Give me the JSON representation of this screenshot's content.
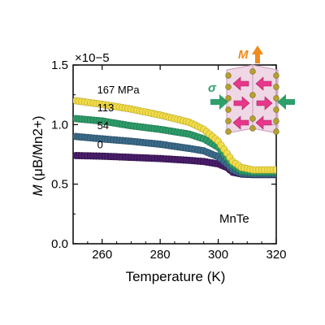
{
  "chart_data": {
    "type": "scatter",
    "xlabel": "Temperature (K)",
    "ylabel_main": "M",
    "ylabel_units": "(μB/Mn2+)",
    "scale_factor_label": "×10−5",
    "xlim": [
      250,
      320
    ],
    "ylim": [
      0.0,
      1.5
    ],
    "xticks": [
      260,
      280,
      300,
      320
    ],
    "yticks": [
      0.0,
      0.5,
      1.0,
      1.5
    ],
    "xtick_labels": [
      "260",
      "280",
      "300",
      "320"
    ],
    "ytick_labels": [
      "0.0",
      "0.5",
      "1.0",
      "1.5"
    ],
    "grid": false,
    "sample_label": "MnTe",
    "series": [
      {
        "name": "0",
        "color": "#4b1e6d",
        "edge": "#2b0f40",
        "x": [
          251,
          260,
          270,
          280,
          290,
          295,
          300,
          303,
          305,
          308,
          312,
          320
        ],
        "y": [
          0.74,
          0.735,
          0.725,
          0.715,
          0.7,
          0.69,
          0.67,
          0.64,
          0.6,
          0.585,
          0.58,
          0.58
        ]
      },
      {
        "name": "54",
        "color": "#3d6b8a",
        "edge": "#244a63",
        "x": [
          251,
          260,
          270,
          280,
          290,
          295,
          300,
          303,
          305,
          308,
          312,
          320
        ],
        "y": [
          0.9,
          0.88,
          0.86,
          0.835,
          0.8,
          0.78,
          0.73,
          0.67,
          0.62,
          0.59,
          0.585,
          0.585
        ]
      },
      {
        "name": "113",
        "color": "#2e9e6b",
        "edge": "#1c6e48",
        "x": [
          251,
          260,
          270,
          280,
          290,
          295,
          300,
          303,
          305,
          308,
          312,
          320
        ],
        "y": [
          1.05,
          1.03,
          0.99,
          0.96,
          0.92,
          0.88,
          0.81,
          0.72,
          0.66,
          0.61,
          0.6,
          0.6
        ]
      },
      {
        "name": "167 MPa",
        "color": "#f2de4a",
        "edge": "#b9a42a",
        "x": [
          251,
          260,
          270,
          280,
          290,
          295,
          300,
          303,
          305,
          308,
          312,
          320
        ],
        "y": [
          1.2,
          1.17,
          1.13,
          1.08,
          1.02,
          0.96,
          0.86,
          0.76,
          0.69,
          0.64,
          0.62,
          0.62
        ]
      }
    ],
    "inset": {
      "moment_label": "M",
      "stress_label": "σ",
      "moment_color": "#f08a1c",
      "stress_color": "#2e9e6b",
      "spin_color": "#e8378a",
      "atom_color": "#b5a032",
      "slab_color": "#e9c9dd",
      "spin_directions": [
        "left",
        "left",
        "right",
        "right",
        "left",
        "left"
      ]
    }
  }
}
